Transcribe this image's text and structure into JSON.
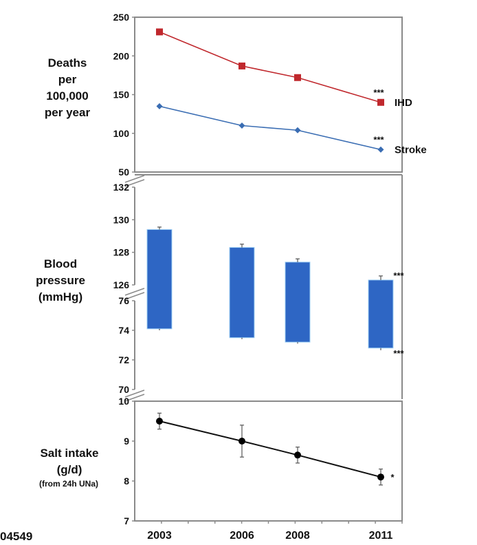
{
  "chart_data": [
    {
      "type": "line",
      "panel": "mortality",
      "ylabel": "Deaths per 100,000 per year",
      "ylabel_lines": [
        "Deaths",
        "per",
        "100,000",
        "per year"
      ],
      "x": [
        2003,
        2006,
        2008,
        2011
      ],
      "ylim": [
        50,
        250
      ],
      "yticks": [
        50,
        100,
        150,
        200,
        250
      ],
      "series": [
        {
          "name": "IHD",
          "color": "#c0282d",
          "marker": "square",
          "values": [
            231,
            187,
            172,
            140
          ],
          "significance": "***"
        },
        {
          "name": "Stroke",
          "color": "#3a6db3",
          "marker": "diamond",
          "values": [
            135,
            110,
            104,
            79
          ],
          "significance": "***"
        }
      ]
    },
    {
      "type": "bar",
      "panel": "blood-pressure",
      "ylabel": "Blood pressure (mmHg)",
      "ylabel_lines": [
        "Blood",
        "pressure",
        "(mmHg)"
      ],
      "x": [
        2003,
        2006,
        2008,
        2011
      ],
      "bar_color": "#2e66c4",
      "systolic": {
        "ylim": [
          126,
          132
        ],
        "yticks": [
          126,
          128,
          130,
          132
        ],
        "values": [
          129.4,
          128.3,
          127.4,
          126.3
        ],
        "errors": [
          0.15,
          0.2,
          0.2,
          0.25
        ],
        "significance": "***"
      },
      "diastolic": {
        "ylim": [
          70,
          76
        ],
        "yticks": [
          70,
          72,
          74,
          76
        ],
        "values": [
          74.1,
          73.5,
          73.2,
          72.8
        ],
        "errors": [
          0.1,
          0.1,
          0.1,
          0.15
        ],
        "significance": "***"
      }
    },
    {
      "type": "line",
      "panel": "salt-intake",
      "ylabel": "Salt intake (g/d) (from 24h UNa)",
      "ylabel_lines": [
        "Salt intake",
        "(g/d)"
      ],
      "ylabel_sub": "(from 24h UNa)",
      "x": [
        2003,
        2006,
        2008,
        2011
      ],
      "ylim": [
        7,
        10
      ],
      "yticks": [
        7,
        8,
        9,
        10
      ],
      "series": [
        {
          "name": "Salt intake",
          "color": "#000000",
          "marker": "circle",
          "values": [
            9.5,
            9.0,
            8.65,
            8.1
          ],
          "errors": [
            0.2,
            0.4,
            0.2,
            0.2
          ],
          "significance": "*"
        }
      ],
      "xticks": [
        "2003",
        "2006",
        "2008",
        "2011"
      ]
    }
  ],
  "footer_id": "04549"
}
